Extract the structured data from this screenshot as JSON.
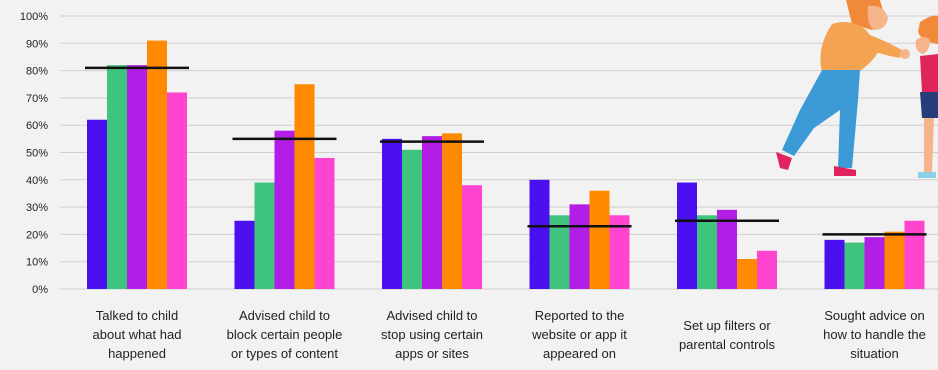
{
  "chart_data": {
    "type": "bar",
    "ylim": [
      0,
      100
    ],
    "yticks": [
      "100%",
      "90%",
      "80%",
      "70%",
      "60%",
      "50%",
      "40%",
      "30%",
      "20%",
      "10%",
      "0%"
    ],
    "grid": true,
    "categories": [
      {
        "lines": [
          "Talked to child",
          "about what had",
          "happened"
        ]
      },
      {
        "lines": [
          "Advised child to",
          "block certain people",
          "or types of content"
        ]
      },
      {
        "lines": [
          "Advised child to",
          "stop using certain",
          "apps or sites"
        ]
      },
      {
        "lines": [
          "Reported to the",
          "website or app it",
          "appeared on"
        ]
      },
      {
        "lines": [
          "Set up filters or",
          "parental controls"
        ]
      },
      {
        "lines": [
          "Sought advice on",
          "how to handle the",
          "situation"
        ]
      }
    ],
    "series": [
      {
        "color": "#4b10f0",
        "values": [
          62,
          25,
          55,
          40,
          39,
          18
        ]
      },
      {
        "color": "#3ec47c",
        "values": [
          82,
          39,
          51,
          27,
          27,
          17
        ]
      },
      {
        "color": "#b21ee6",
        "values": [
          82,
          58,
          56,
          31,
          29,
          19
        ]
      },
      {
        "color": "#ff8a00",
        "values": [
          91,
          75,
          57,
          36,
          11,
          21
        ]
      },
      {
        "color": "#ff44cf",
        "values": [
          72,
          48,
          38,
          27,
          14,
          25
        ]
      }
    ],
    "average_lines": [
      81,
      55,
      54,
      23,
      25,
      20
    ],
    "average_line_color": "#111111"
  },
  "illustration": {
    "description_icon": "parent-and-child-illustration",
    "skin": "#f6b48a",
    "hair": "#f08a3a",
    "jacket": "#f3a352",
    "jeans": "#3c9bd6",
    "shoes": "#e0245e",
    "child_top": "#e0245e",
    "child_shorts": "#283c7a"
  }
}
